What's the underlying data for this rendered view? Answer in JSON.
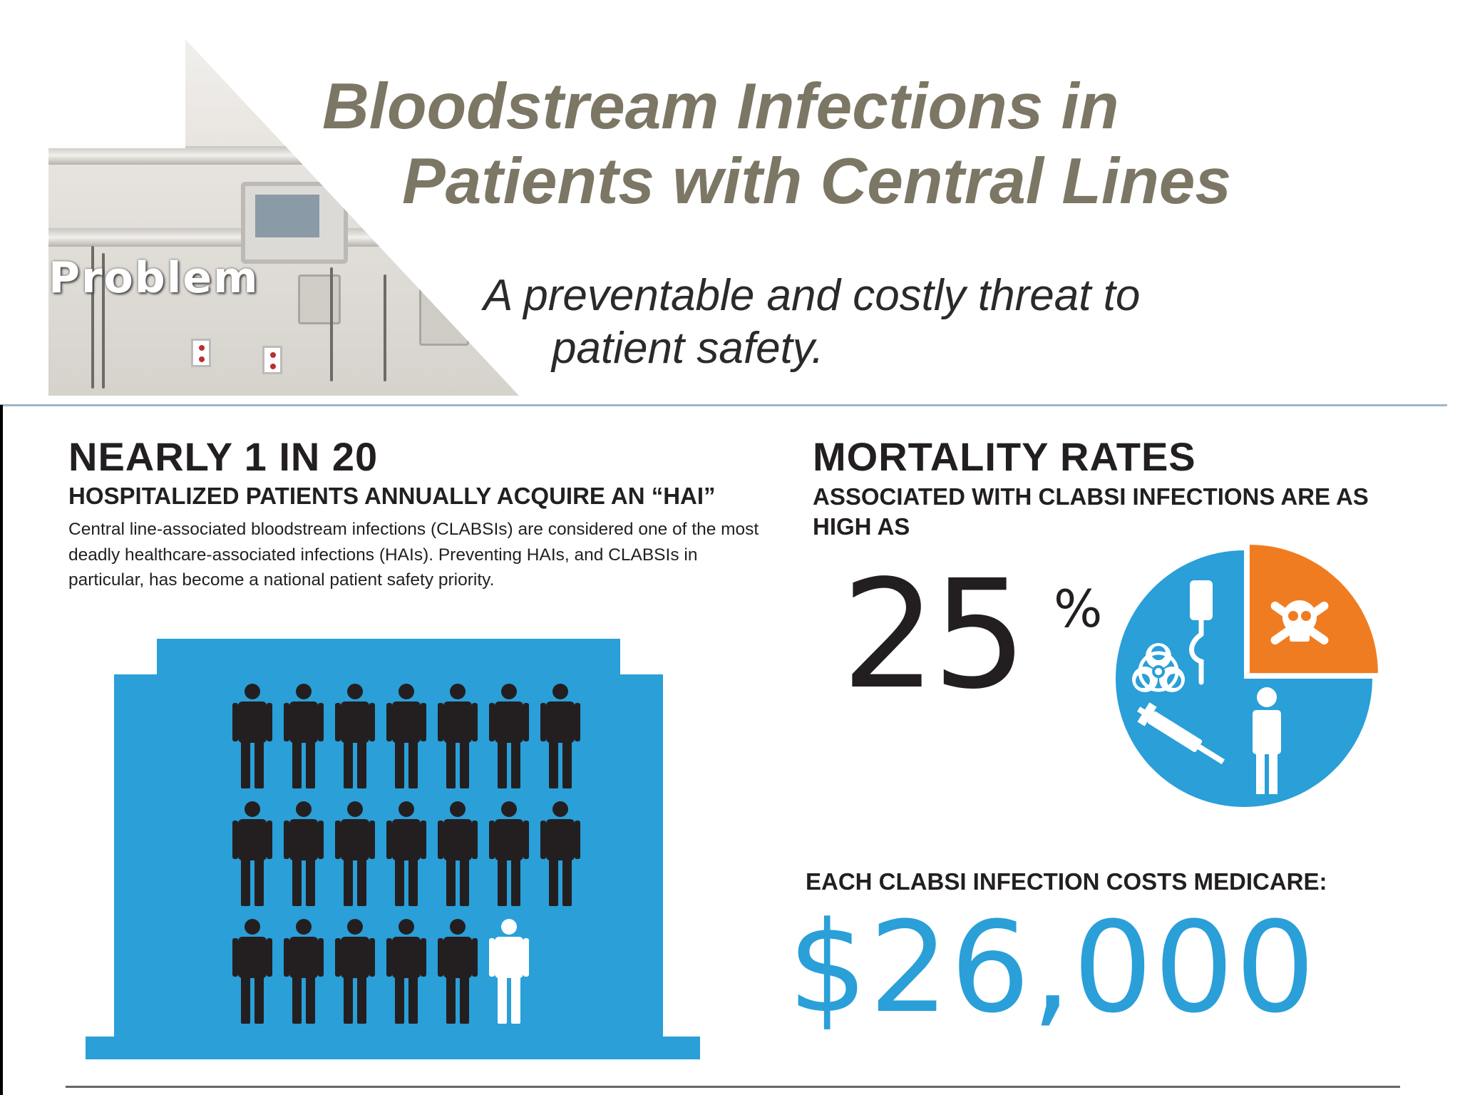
{
  "header": {
    "title_line1": "Bloodstream Infections in",
    "title_line2": "Patients with Central Lines",
    "problem_label": "Problem",
    "subtitle_line1": "A preventable and costly threat to",
    "subtitle_line2": "patient safety."
  },
  "left": {
    "headline": "NEARLY 1 IN 20",
    "subhead": "HOSPITALIZED PATIENTS ANNUALLY ACQUIRE AN “HAI”",
    "body": "Central line-associated bloodstream infections (CLABSIs) are considered one of the most deadly healthcare-associated infections (HAIs). Preventing HAIs, and CLABSIs in particular, has become a national patient safety priority.",
    "people_total": 20,
    "people_highlighted": 1
  },
  "right": {
    "headline": "MORTALITY RATES",
    "subhead": "ASSOCIATED WITH CLABSI INFECTIONS ARE AS HIGH AS",
    "percent_value": "25",
    "percent_sign": "%",
    "pie_fraction_highlighted": 0.25,
    "pie_icons": [
      "biohazard-icon",
      "iv-bag-icon",
      "skull-crossbones-icon",
      "syringe-icon",
      "person-icon"
    ],
    "cost_label": "EACH CLABSI INFECTION COSTS MEDICARE:",
    "cost_value": "$26,000"
  },
  "colors": {
    "blue": "#2a9fd8",
    "orange": "#f07c22",
    "dark": "#231f20",
    "title": "#7c7664"
  }
}
